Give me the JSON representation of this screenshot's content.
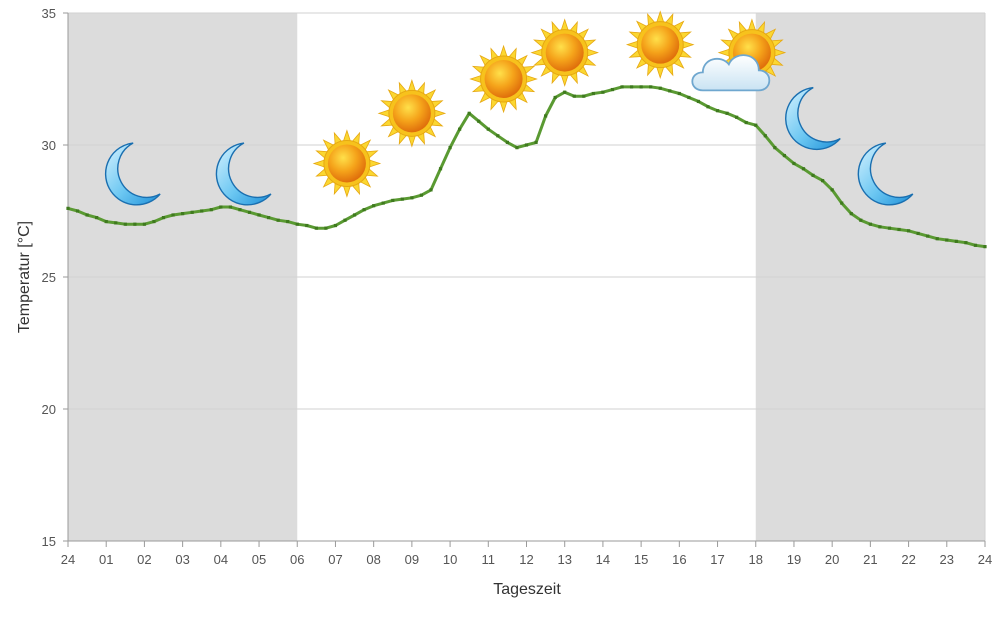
{
  "chart_data": {
    "type": "line",
    "xlabel": "Tageszeit",
    "ylabel": "Temperatur [°C]",
    "ylim": [
      15,
      35
    ],
    "xlim": [
      0,
      24
    ],
    "grid": true,
    "x_ticks": [
      {
        "x": 0,
        "label": "24"
      },
      {
        "x": 1,
        "label": "01"
      },
      {
        "x": 2,
        "label": "02"
      },
      {
        "x": 3,
        "label": "03"
      },
      {
        "x": 4,
        "label": "04"
      },
      {
        "x": 5,
        "label": "05"
      },
      {
        "x": 6,
        "label": "06"
      },
      {
        "x": 7,
        "label": "07"
      },
      {
        "x": 8,
        "label": "08"
      },
      {
        "x": 9,
        "label": "09"
      },
      {
        "x": 10,
        "label": "10"
      },
      {
        "x": 11,
        "label": "11"
      },
      {
        "x": 12,
        "label": "12"
      },
      {
        "x": 13,
        "label": "13"
      },
      {
        "x": 14,
        "label": "14"
      },
      {
        "x": 15,
        "label": "15"
      },
      {
        "x": 16,
        "label": "16"
      },
      {
        "x": 17,
        "label": "17"
      },
      {
        "x": 18,
        "label": "18"
      },
      {
        "x": 19,
        "label": "19"
      },
      {
        "x": 20,
        "label": "20"
      },
      {
        "x": 21,
        "label": "21"
      },
      {
        "x": 22,
        "label": "22"
      },
      {
        "x": 23,
        "label": "23"
      },
      {
        "x": 24,
        "label": "24"
      }
    ],
    "y_ticks": [
      15,
      20,
      25,
      30,
      35
    ],
    "night_shading": [
      [
        0,
        6
      ],
      [
        18,
        24
      ]
    ],
    "colors": {
      "line": "#5a9a32",
      "marker": "#3f7a1e",
      "night": "#dcdcdc",
      "grid": "#d2d2d2"
    },
    "series": [
      {
        "values": [
          [
            0,
            27.6
          ],
          [
            0.25,
            27.5
          ],
          [
            0.5,
            27.35
          ],
          [
            0.75,
            27.25
          ],
          [
            1,
            27.1
          ],
          [
            1.25,
            27.05
          ],
          [
            1.5,
            27.0
          ],
          [
            1.75,
            27.0
          ],
          [
            2.0,
            27.0
          ],
          [
            2.25,
            27.1
          ],
          [
            2.5,
            27.25
          ],
          [
            2.75,
            27.35
          ],
          [
            3.0,
            27.4
          ],
          [
            3.25,
            27.45
          ],
          [
            3.5,
            27.5
          ],
          [
            3.75,
            27.55
          ],
          [
            4.0,
            27.65
          ],
          [
            4.25,
            27.65
          ],
          [
            4.5,
            27.55
          ],
          [
            4.75,
            27.45
          ],
          [
            5.0,
            27.35
          ],
          [
            5.25,
            27.25
          ],
          [
            5.5,
            27.15
          ],
          [
            5.75,
            27.1
          ],
          [
            6.0,
            27.0
          ],
          [
            6.25,
            26.95
          ],
          [
            6.5,
            26.85
          ],
          [
            6.75,
            26.85
          ],
          [
            7.0,
            26.95
          ],
          [
            7.25,
            27.15
          ],
          [
            7.5,
            27.35
          ],
          [
            7.75,
            27.55
          ],
          [
            8.0,
            27.7
          ],
          [
            8.25,
            27.8
          ],
          [
            8.5,
            27.9
          ],
          [
            8.75,
            27.95
          ],
          [
            9.0,
            28.0
          ],
          [
            9.25,
            28.1
          ],
          [
            9.5,
            28.3
          ],
          [
            9.75,
            29.1
          ],
          [
            10.0,
            29.9
          ],
          [
            10.25,
            30.6
          ],
          [
            10.5,
            31.2
          ],
          [
            10.75,
            30.9
          ],
          [
            11.0,
            30.6
          ],
          [
            11.25,
            30.35
          ],
          [
            11.5,
            30.1
          ],
          [
            11.75,
            29.9
          ],
          [
            12.0,
            30.0
          ],
          [
            12.25,
            30.1
          ],
          [
            12.5,
            31.1
          ],
          [
            12.75,
            31.8
          ],
          [
            13.0,
            32.0
          ],
          [
            13.25,
            31.85
          ],
          [
            13.5,
            31.85
          ],
          [
            13.75,
            31.95
          ],
          [
            14.0,
            32.0
          ],
          [
            14.25,
            32.1
          ],
          [
            14.5,
            32.2
          ],
          [
            14.75,
            32.2
          ],
          [
            15.0,
            32.2
          ],
          [
            15.25,
            32.2
          ],
          [
            15.5,
            32.15
          ],
          [
            15.75,
            32.05
          ],
          [
            16.0,
            31.95
          ],
          [
            16.25,
            31.8
          ],
          [
            16.5,
            31.65
          ],
          [
            16.75,
            31.45
          ],
          [
            17.0,
            31.3
          ],
          [
            17.25,
            31.2
          ],
          [
            17.5,
            31.05
          ],
          [
            17.75,
            30.85
          ],
          [
            18.0,
            30.75
          ],
          [
            18.25,
            30.35
          ],
          [
            18.5,
            29.9
          ],
          [
            18.75,
            29.6
          ],
          [
            19.0,
            29.3
          ],
          [
            19.25,
            29.1
          ],
          [
            19.5,
            28.85
          ],
          [
            19.75,
            28.65
          ],
          [
            20.0,
            28.3
          ],
          [
            20.25,
            27.8
          ],
          [
            20.5,
            27.4
          ],
          [
            20.75,
            27.15
          ],
          [
            21.0,
            27.0
          ],
          [
            21.25,
            26.9
          ],
          [
            21.5,
            26.85
          ],
          [
            21.75,
            26.8
          ],
          [
            22.0,
            26.75
          ],
          [
            22.25,
            26.65
          ],
          [
            22.5,
            26.55
          ],
          [
            22.75,
            26.45
          ],
          [
            23.0,
            26.4
          ],
          [
            23.25,
            26.35
          ],
          [
            23.5,
            26.3
          ],
          [
            23.75,
            26.2
          ],
          [
            24.0,
            26.15
          ]
        ]
      }
    ],
    "weather_icons": [
      {
        "icon": "moon-icon",
        "x": 1.6,
        "y": 28.9
      },
      {
        "icon": "moon-icon",
        "x": 4.5,
        "y": 28.9
      },
      {
        "icon": "sun-icon",
        "x": 7.3,
        "y": 29.3
      },
      {
        "icon": "sun-icon",
        "x": 9.0,
        "y": 31.2
      },
      {
        "icon": "sun-icon",
        "x": 11.4,
        "y": 32.5
      },
      {
        "icon": "sun-icon",
        "x": 13.0,
        "y": 33.5
      },
      {
        "icon": "sun-icon",
        "x": 15.5,
        "y": 33.8
      },
      {
        "icon": "sun-icon",
        "x": 17.9,
        "y": 33.5
      },
      {
        "icon": "cloud-icon",
        "x": 17.4,
        "y": 32.6
      },
      {
        "icon": "moon-icon",
        "x": 19.4,
        "y": 31.0
      },
      {
        "icon": "moon-icon",
        "x": 21.3,
        "y": 28.9
      }
    ]
  }
}
